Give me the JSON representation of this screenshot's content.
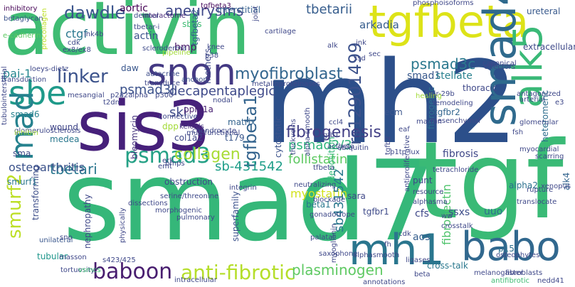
{
  "words": [
    {
      "text": "smad7",
      "color": "#35b779"
    },
    {
      "text": "mh2",
      "color": "#2c4f8a"
    },
    {
      "text": "activin",
      "color": "#3fbc73"
    },
    {
      "text": "tgf",
      "color": "#3aba76"
    },
    {
      "text": "sis3",
      "color": "#46207a"
    },
    {
      "text": "tgfbeta",
      "color": "#dde318"
    },
    {
      "text": "smad4",
      "color": "#2f6a8d"
    },
    {
      "text": "mh1",
      "color": "#2a768e"
    },
    {
      "text": "babo",
      "color": "#31688e"
    },
    {
      "text": "alk5",
      "color": "#3ab977"
    },
    {
      "text": "snon",
      "color": "#443983"
    },
    {
      "text": "sbe",
      "color": "#1f9a8a"
    },
    {
      "text": "mad",
      "color": "#26828e"
    },
    {
      "text": "anti-fibrotic",
      "color": "#b5de2b"
    },
    {
      "text": "baboon",
      "color": "#481d6f"
    },
    {
      "text": "smurf2",
      "color": "#bddf26"
    },
    {
      "text": "psmad3",
      "color": "#25a186"
    },
    {
      "text": "linker",
      "color": "#3b528b"
    },
    {
      "text": "tgfbeta1",
      "color": "#33638d"
    },
    {
      "text": "myofibroblast",
      "color": "#32658e"
    },
    {
      "text": "fibrogenesis",
      "color": "#423f85"
    },
    {
      "text": "rs12901499",
      "color": "#3b518b"
    },
    {
      "text": "psmad3c",
      "color": "#2a788e"
    },
    {
      "text": "dawdle",
      "color": "#3a548c"
    },
    {
      "text": "psmad3l",
      "color": "#3b528b"
    },
    {
      "text": "decapentaplegic",
      "color": "#3e4989"
    },
    {
      "text": "aneurysms",
      "color": "#3f4889"
    },
    {
      "text": "tbetari",
      "color": "#2a768e"
    },
    {
      "text": "tbetarii",
      "color": "#365d8d"
    },
    {
      "text": "arkadia",
      "color": "#365d8d"
    },
    {
      "text": "plasminogen",
      "color": "#5ec962"
    },
    {
      "text": "myostatin",
      "color": "#d2e21b"
    },
    {
      "text": "collagen",
      "color": "#a8db34"
    },
    {
      "text": "psmad2/3",
      "color": "#2fb47c"
    },
    {
      "text": "sb-431542",
      "color": "#1f9e89"
    },
    {
      "text": "sb431542",
      "color": "#2a788e"
    },
    {
      "text": "fibronectin",
      "color": "#4ec36b"
    },
    {
      "text": "follistatin",
      "color": "#5ec962"
    },
    {
      "text": "osteoarthritis",
      "color": "#3b528b"
    },
    {
      "text": "ski",
      "color": "#3e4a89"
    },
    {
      "text": "ctgf",
      "color": "#2a778e"
    },
    {
      "text": "pai-1",
      "color": "#24868e"
    },
    {
      "text": "aortic",
      "color": "#440154"
    },
    {
      "text": "actin",
      "color": "#3b528b"
    },
    {
      "text": "bmp",
      "color": "#48186a"
    },
    {
      "text": "smad1",
      "color": "#38588c"
    },
    {
      "text": "stellate",
      "color": "#27808e"
    },
    {
      "text": "fibrosis",
      "color": "#3f4788"
    },
    {
      "text": "cfs",
      "color": "#3f4889"
    },
    {
      "text": "ssxs",
      "color": "#3d4d8a"
    },
    {
      "text": "uuo",
      "color": "#2d708e"
    },
    {
      "text": "aos",
      "color": "#355e8d"
    },
    {
      "text": "tgfbr1",
      "color": "#3e4a89"
    },
    {
      "text": "tgfbr2",
      "color": "#32658e"
    },
    {
      "text": "ecm",
      "color": "#3a548c"
    },
    {
      "text": "matrix",
      "color": "#33638d"
    },
    {
      "text": "wound",
      "color": "#404688"
    },
    {
      "text": "dpp",
      "color": "#a2da37"
    },
    {
      "text": "ppm1a",
      "color": "#482071"
    },
    {
      "text": "t179",
      "color": "#39568c"
    },
    {
      "text": "col1a2",
      "color": "#3f4788"
    },
    {
      "text": "medea",
      "color": "#2a788e"
    },
    {
      "text": "smad6",
      "color": "#26818e"
    },
    {
      "text": "transforming",
      "color": "#3d4e8a"
    },
    {
      "text": "nephropathy",
      "color": "#3f4889"
    },
    {
      "text": "tubular",
      "color": "#1f968b"
    },
    {
      "text": "superfamily",
      "color": "#3b528b"
    },
    {
      "text": "cross-talk",
      "color": "#2a788e"
    },
    {
      "text": "beta1",
      "color": "#2a778e"
    },
    {
      "text": "cytostatic",
      "color": "#3b528b"
    },
    {
      "text": "deposition",
      "color": "#35b779"
    },
    {
      "text": "fibrogenic",
      "color": "#2d708e"
    },
    {
      "text": "smurf1",
      "color": "#2a778e"
    },
    {
      "text": "heteromeric",
      "color": "#2e6e8e"
    },
    {
      "text": "thoracic",
      "color": "#3f4889"
    },
    {
      "text": "ureteral",
      "color": "#38598c"
    },
    {
      "text": "extracellular",
      "color": "#3e4989"
    },
    {
      "text": "p15",
      "color": "#2d708e"
    },
    {
      "text": "sara",
      "color": "#3f4788"
    },
    {
      "text": "alk4",
      "color": "#32648e"
    },
    {
      "text": "punt",
      "color": "#3f4788"
    },
    {
      "text": "sbes",
      "color": "#3fbc73"
    },
    {
      "text": "daw",
      "color": "#39568c"
    },
    {
      "text": "sma",
      "color": "#3e4a89"
    },
    {
      "text": "bleomycin",
      "color": "#46337f"
    },
    {
      "text": "mothers",
      "color": "#3e4a89"
    },
    {
      "text": "obstruction",
      "color": "#3e4a89"
    },
    {
      "text": "alpha2",
      "color": "#2c718e"
    },
    {
      "text": "tgfbeta2",
      "color": "#34618d"
    },
    {
      "text": "tgfbeta3",
      "color": "#46085c"
    },
    {
      "text": "interstitial",
      "color": "#35608d"
    },
    {
      "text": "phosphoisoforms",
      "color": "#3f4889"
    },
    {
      "text": "inhibitory",
      "color": "#440154"
    },
    {
      "text": "betaglycan",
      "color": "#3b528b"
    },
    {
      "text": "dermal",
      "color": "#3d4d8a"
    },
    {
      "text": "interactome",
      "color": "#482979"
    },
    {
      "text": "scleroderma",
      "color": "#3e4a89"
    },
    {
      "text": "tbetar-i",
      "color": "#3f4889"
    },
    {
      "text": "procollagen",
      "color": "#bddf26"
    },
    {
      "text": "loeys-dietz",
      "color": "#3f4889"
    },
    {
      "text": "transduction",
      "color": "#3e4989"
    },
    {
      "text": "autocrine",
      "color": "#3d4e8a"
    },
    {
      "text": "anchor",
      "color": "#3b528b"
    },
    {
      "text": "mesangial",
      "color": "#3f4889"
    },
    {
      "text": "glomerulosclerosis",
      "color": "#3f4889"
    },
    {
      "text": "inhibin",
      "color": "#a2da37"
    },
    {
      "text": "dissections",
      "color": "#3f4889"
    },
    {
      "text": "serine/threonine",
      "color": "#3e4989"
    },
    {
      "text": "morphogenic",
      "color": "#3f4889"
    },
    {
      "text": "pulmonary",
      "color": "#3f4889"
    },
    {
      "text": "unilateral",
      "color": "#39568c"
    },
    {
      "text": "multifunctional",
      "color": "#3f4889"
    },
    {
      "text": "keloids",
      "color": "#46327e"
    },
    {
      "text": "chondrocyte",
      "color": "#3f4889"
    },
    {
      "text": "thickveins",
      "color": "#3f4889"
    },
    {
      "text": "tetrachloride",
      "color": "#3f4889"
    },
    {
      "text": "resource",
      "color": "#3f4889"
    },
    {
      "text": "alphasma",
      "color": "#3f4889"
    },
    {
      "text": "gonadotrope",
      "color": "#3f4889"
    },
    {
      "text": "antiproliferative",
      "color": "#3f4889"
    },
    {
      "text": "neutralizing",
      "color": "#3f4889"
    },
    {
      "text": "blockade",
      "color": "#3f4889"
    },
    {
      "text": "myoglianin",
      "color": "#3f4889"
    },
    {
      "text": "alphasmooth",
      "color": "#3f4889"
    },
    {
      "text": "ligases",
      "color": "#3f4889"
    },
    {
      "text": "annotations",
      "color": "#3f4889"
    },
    {
      "text": "antifibrotic",
      "color": "#3fbc73"
    },
    {
      "text": "fibroblasts",
      "color": "#3f4889"
    },
    {
      "text": "osteophytes",
      "color": "#3f4889"
    },
    {
      "text": "melanogaster",
      "color": "#3f4889"
    },
    {
      "text": "tortuosity",
      "color": "#3f4889"
    },
    {
      "text": "intracellular",
      "color": "#3f4889"
    },
    {
      "text": "saxophone",
      "color": "#3f4889"
    },
    {
      "text": "masson",
      "color": "#3f4889"
    },
    {
      "text": "s423/425",
      "color": "#3f4889"
    },
    {
      "text": "physically",
      "color": "#3f4889"
    },
    {
      "text": "canonical",
      "color": "#3f4889"
    },
    {
      "text": "mesenchymal",
      "color": "#3f4889"
    },
    {
      "text": "healing",
      "color": "#a2da37"
    },
    {
      "text": "remodeling",
      "color": "#3f4889"
    },
    {
      "text": "antagonized",
      "color": "#3f4889"
    },
    {
      "text": "arterial",
      "color": "#3f4889"
    },
    {
      "text": "glomerular",
      "color": "#3f4889"
    },
    {
      "text": "myocardial",
      "color": "#3f4889"
    },
    {
      "text": "scarring",
      "color": "#3f4889"
    },
    {
      "text": "fsh",
      "color": "#3f4889"
    },
    {
      "text": "rupture",
      "color": "#3f4889"
    },
    {
      "text": "xenopus",
      "color": "#3f4889"
    },
    {
      "text": "translocate",
      "color": "#3f4889"
    },
    {
      "text": "crosstalk",
      "color": "#3f4889"
    },
    {
      "text": "nedd41",
      "color": "#3f4889"
    },
    {
      "text": "e-cadherin",
      "color": "#5ec962"
    },
    {
      "text": "tubulointerstitial",
      "color": "#3f4889"
    },
    {
      "text": "ex8/ex8",
      "color": "#3f4889"
    },
    {
      "text": "ink4b",
      "color": "#3f4889"
    },
    {
      "text": "transduce",
      "color": "#3f4889"
    },
    {
      "text": "connective",
      "color": "#3f4889"
    },
    {
      "text": "metalloproteinases",
      "color": "#3f4889"
    },
    {
      "text": "nodal",
      "color": "#3f4889"
    },
    {
      "text": "p300",
      "color": "#3f4889"
    },
    {
      "text": "alpha-smooth",
      "color": "#3f4889"
    },
    {
      "text": "ccl4",
      "color": "#3f4889"
    },
    {
      "text": "tgfb1",
      "color": "#3f4889"
    },
    {
      "text": "actbeta",
      "color": "#3f4889"
    },
    {
      "text": "ubiquitin",
      "color": "#3f4889"
    },
    {
      "text": "tgfb2",
      "color": "#3f4889"
    },
    {
      "text": "p1tp-lux",
      "color": "#3f4889"
    },
    {
      "text": "marfan",
      "color": "#3f4889"
    },
    {
      "text": "mir-29b",
      "color": "#3f4889"
    },
    {
      "text": "effectors",
      "color": "#3f4889"
    },
    {
      "text": "ww",
      "color": "#3f4889"
    },
    {
      "text": "jnk",
      "color": "#3f4889"
    },
    {
      "text": "alk",
      "color": "#3f4889"
    },
    {
      "text": "pipeline",
      "color": "#a2da37"
    },
    {
      "text": "cartilage",
      "color": "#3f4889"
    },
    {
      "text": "joint",
      "color": "#3f4889"
    },
    {
      "text": "cdk",
      "color": "#3f4889"
    },
    {
      "text": "t2dn",
      "color": "#3f4889"
    },
    {
      "text": "p38",
      "color": "#3f4889"
    },
    {
      "text": "knee",
      "color": "#3f4889"
    },
    {
      "text": "tfbeta",
      "color": "#3f4889"
    },
    {
      "text": "erk",
      "color": "#3f4889"
    },
    {
      "text": "integrin",
      "color": "#3f4889"
    },
    {
      "text": "beta",
      "color": "#3f4889"
    },
    {
      "text": "vsmcs",
      "color": "#3fbc73"
    },
    {
      "text": "sno",
      "color": "#3f4889"
    },
    {
      "text": "palatal",
      "color": "#3f4889"
    },
    {
      "text": "sec",
      "color": "#3f4889"
    },
    {
      "text": "ssd",
      "color": "#3f4889"
    },
    {
      "text": "emt",
      "color": "#3f4889"
    },
    {
      "text": "eaf",
      "color": "#3f4889"
    },
    {
      "text": "bmps",
      "color": "#3f4889"
    },
    {
      "text": "cdk",
      "color": "#3f4889"
    },
    {
      "text": "p2a2alpha",
      "color": "#3f4889"
    },
    {
      "text": "fh",
      "color": "#3f4889"
    },
    {
      "text": "e3",
      "color": "#3f4889"
    }
  ]
}
